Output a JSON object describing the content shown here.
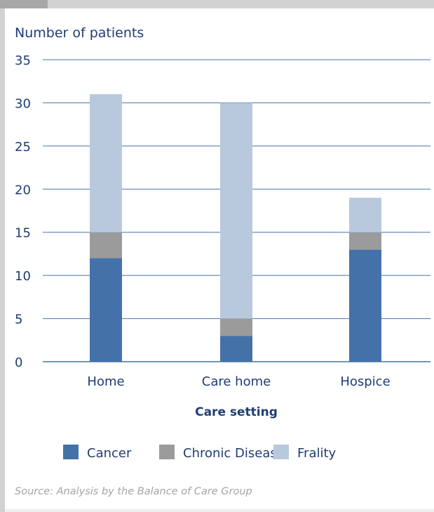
{
  "chart_data": {
    "type": "bar",
    "stacked": true,
    "categories": [
      "Home",
      "Care home",
      "Hospice"
    ],
    "series": [
      {
        "name": "Cancer",
        "color": "#4472a8",
        "values": [
          12,
          3,
          13
        ]
      },
      {
        "name": "Chronic Disease",
        "color": "#9b9b9b",
        "values": [
          3,
          2,
          2
        ]
      },
      {
        "name": "Frality",
        "color": "#b8c9dd",
        "values": [
          16,
          25,
          4
        ]
      }
    ],
    "ylabel": "Number of patients",
    "xlabel": "Care setting",
    "ylim": [
      0,
      35
    ],
    "yticks": [
      0,
      5,
      10,
      15,
      20,
      25,
      30,
      35
    ],
    "grid": true,
    "legend": "bottom",
    "axis_color": "#4472a8",
    "text_color": "#1f3d73"
  },
  "source": "Source: Analysis by the Balance of Care Group"
}
